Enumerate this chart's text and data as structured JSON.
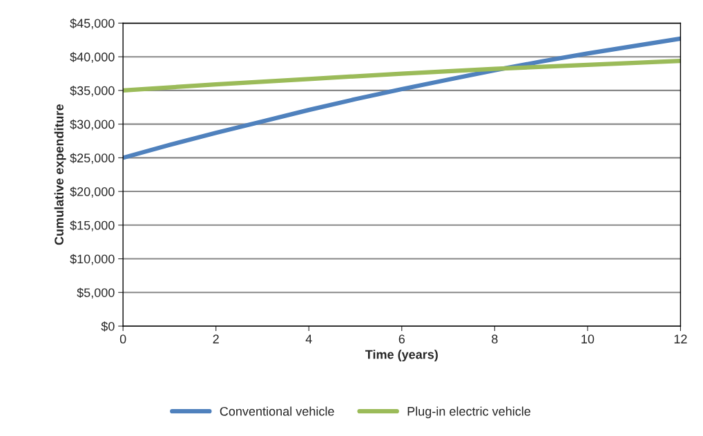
{
  "chart_data": {
    "type": "line",
    "xlabel": "Time (years)",
    "ylabel": "Cumulative expenditure",
    "series": [
      {
        "name": "Conventional vehicle",
        "color": "#4f81bd",
        "x": [
          0,
          1,
          2,
          3,
          4,
          5,
          6,
          7,
          8,
          9,
          10,
          11,
          12
        ],
        "values": [
          25000,
          26900,
          28700,
          30400,
          32100,
          33700,
          35200,
          36600,
          38000,
          39300,
          40500,
          41600,
          42700
        ]
      },
      {
        "name": "Plug-in electric vehicle",
        "color": "#9bbb59",
        "x": [
          0,
          2,
          4,
          6,
          8,
          10,
          12
        ],
        "values": [
          35000,
          35900,
          36700,
          37500,
          38200,
          38800,
          39400
        ]
      }
    ],
    "xlim": [
      0,
      12
    ],
    "xticks": [
      0,
      2,
      4,
      6,
      8,
      10,
      12
    ],
    "ylim": [
      0,
      45000
    ],
    "yticks": [
      {
        "value": 0,
        "label": "$0"
      },
      {
        "value": 5000,
        "label": "$5,000"
      },
      {
        "value": 10000,
        "label": "$10,000"
      },
      {
        "value": 15000,
        "label": "$15,000"
      },
      {
        "value": 20000,
        "label": "$20,000"
      },
      {
        "value": 25000,
        "label": "$25,000"
      },
      {
        "value": 30000,
        "label": "$30,000"
      },
      {
        "value": 35000,
        "label": "$35,000"
      },
      {
        "value": 40000,
        "label": "$40,000"
      },
      {
        "value": 45000,
        "label": "$45,000"
      }
    ],
    "grid": "y",
    "legend": "bottom",
    "marker": "none",
    "line_style": "solid"
  }
}
